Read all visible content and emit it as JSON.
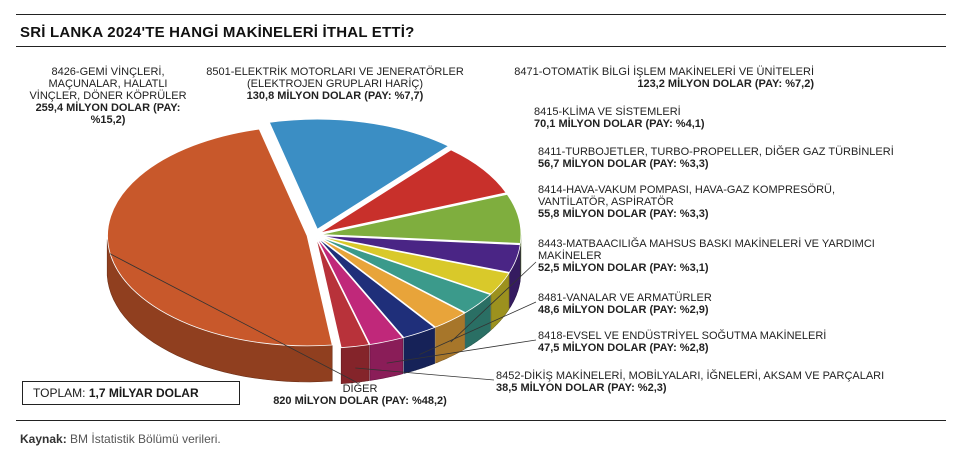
{
  "title": "SRİ LANKA 2024'TE HANGİ MAKİNELERİ İTHAL ETTİ?",
  "total": {
    "label": "TOPLAM:",
    "value": "1,7 MİLYAR DOLAR"
  },
  "source": {
    "label": "Kaynak:",
    "text": "BM İstatistik Bölümü verileri."
  },
  "colors": {
    "slices": [
      "#c8582b",
      "#3b8ec4",
      "#c8302b",
      "#7fae3e",
      "#4a2585",
      "#d9c92a",
      "#3b9a8b",
      "#e8a43a",
      "#1f2f7a",
      "#c0287a",
      "#b8323a",
      "#2a6a3a"
    ]
  },
  "chart_data": {
    "type": "pie",
    "title": "SRİ LANKA 2024'TE HANGİ MAKİNELERİ İTHAL ETTİ?",
    "unit": "MİLYON DOLAR",
    "slices": [
      {
        "label": "DİĞER",
        "value_text": "820 MİLYON DOLAR (PAY: %48,2)",
        "value": 820,
        "share": 48.2
      },
      {
        "label": "8426-GEMİ VİNÇLERİ, MAÇUNALAR, HALATLI VİNÇLER, DÖNER KÖPRÜLER",
        "value_text": "259,4 MİLYON DOLAR (PAY: %15,2)",
        "value": 259.4,
        "share": 15.2
      },
      {
        "label": "8501-ELEKTRİK MOTORLARI VE JENERATÖRLER (ELEKTROJEN GRUPLARI HARİÇ)",
        "value_text": "130,8 MİLYON DOLAR (PAY: %7,7)",
        "value": 130.8,
        "share": 7.7
      },
      {
        "label": "8471-OTOMATİK BİLGİ İŞLEM MAKİNELERİ VE ÜNİTELERİ",
        "value_text": "123,2 MİLYON DOLAR (PAY: %7,2)",
        "value": 123.2,
        "share": 7.2
      },
      {
        "label": "8415-KLİMA VE SİSTEMLERİ",
        "value_text": "70,1 MİLYON DOLAR (PAY: %4,1)",
        "value": 70.1,
        "share": 4.1
      },
      {
        "label": "8411-TURBOJETLER, TURBO-PROPELLER, DİĞER GAZ TÜRBİNLERİ",
        "value_text": "56,7 MİLYON DOLAR (PAY: %3,3)",
        "value": 56.7,
        "share": 3.3
      },
      {
        "label": "8414-HAVA-VAKUM POMPASI, HAVA-GAZ KOMPRESÖRÜ, VANTİLATÖR, ASPİRATÖR",
        "value_text": "55,8 MİLYON DOLAR (PAY: %3,3)",
        "value": 55.8,
        "share": 3.3
      },
      {
        "label": "8443-MATBAACILIĞA MAHSUS BASKI MAKİNELERİ VE YARDIMCI MAKİNELER",
        "value_text": "52,5 MİLYON DOLAR (PAY: %3,1)",
        "value": 52.5,
        "share": 3.1
      },
      {
        "label": "8481-VANALAR VE ARMATÜRLER",
        "value_text": "48,6 MİLYON DOLAR (PAY: %2,9)",
        "value": 48.6,
        "share": 2.9
      },
      {
        "label": "8418-EVSEL VE ENDÜSTRİYEL SOĞUTMA MAKİNELERİ",
        "value_text": "47,5 MİLYON DOLAR (PAY: %2,8)",
        "value": 47.5,
        "share": 2.8
      },
      {
        "label": "8452-DİKİŞ MAKİNELERİ, MOBİLYALARI, İĞNELERİ, AKSAM VE PARÇALARI",
        "value_text": "38,5 MİLYON DOLAR (PAY: %2,3)",
        "value": 38.5,
        "share": 2.3
      }
    ]
  }
}
